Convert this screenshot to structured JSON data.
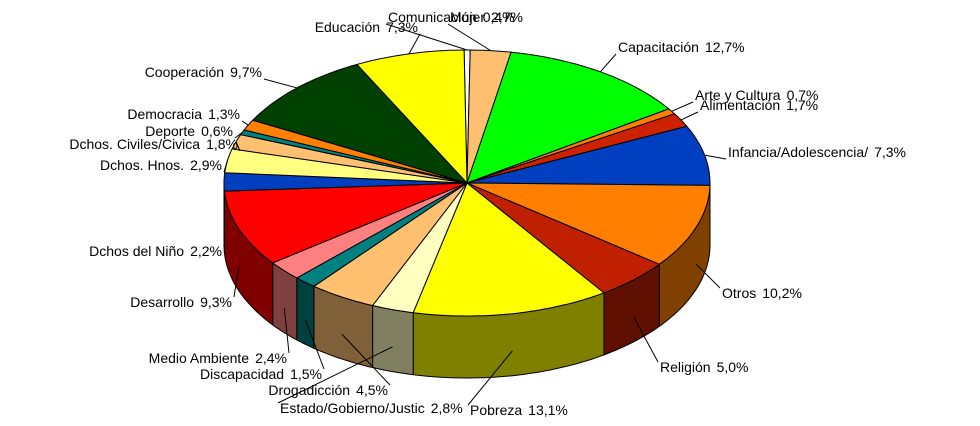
{
  "chart_data": {
    "type": "pie",
    "three_d": true,
    "categories": [
      "Comunicación",
      "Mujer",
      "Capacitación",
      "Arte y Cultura",
      "Alimentación",
      "Infancia/Adolescencia/",
      "Otros",
      "Religión",
      "Pobreza",
      "Estado/Gobierno/Justic",
      "Drogadicción",
      "Discapacidad",
      "Medio Ambiente",
      "Desarrollo",
      "Dchos del Niño",
      "Dchos. Hnos.",
      "Dchos. Civiles/Civica",
      "Deporte",
      "Democracia",
      "Cooperación",
      "Educación"
    ],
    "values": [
      0.4,
      2.7,
      12.7,
      0.7,
      1.7,
      7.3,
      10.2,
      5.0,
      13.1,
      2.8,
      4.5,
      1.5,
      2.4,
      9.3,
      2.2,
      2.9,
      1.8,
      0.6,
      1.3,
      9.7,
      7.3
    ],
    "value_labels": [
      "0,4%",
      "2,7%",
      "12,7%",
      "0,7%",
      "1,7%",
      "7,3%",
      "10,2%",
      "5,0%",
      "13,1%",
      "2,8%",
      "4,5%",
      "1,5%",
      "2,4%",
      "9,3%",
      "2,2%",
      "2,9%",
      "1,8%",
      "0,6%",
      "1,3%",
      "9,7%",
      "7,3%"
    ],
    "colors": [
      "#ffffff",
      "#ffbf70",
      "#00ff00",
      "#ff8000",
      "#cc2200",
      "#0040c0",
      "#ff8000",
      "#c02000",
      "#ffff00",
      "#ffffc0",
      "#ffc070",
      "#008080",
      "#ff8080",
      "#ff0000",
      "#0040c0",
      "#ffff80",
      "#ffc070",
      "#008080",
      "#ff8000",
      "#004000",
      "#ffff00"
    ]
  }
}
